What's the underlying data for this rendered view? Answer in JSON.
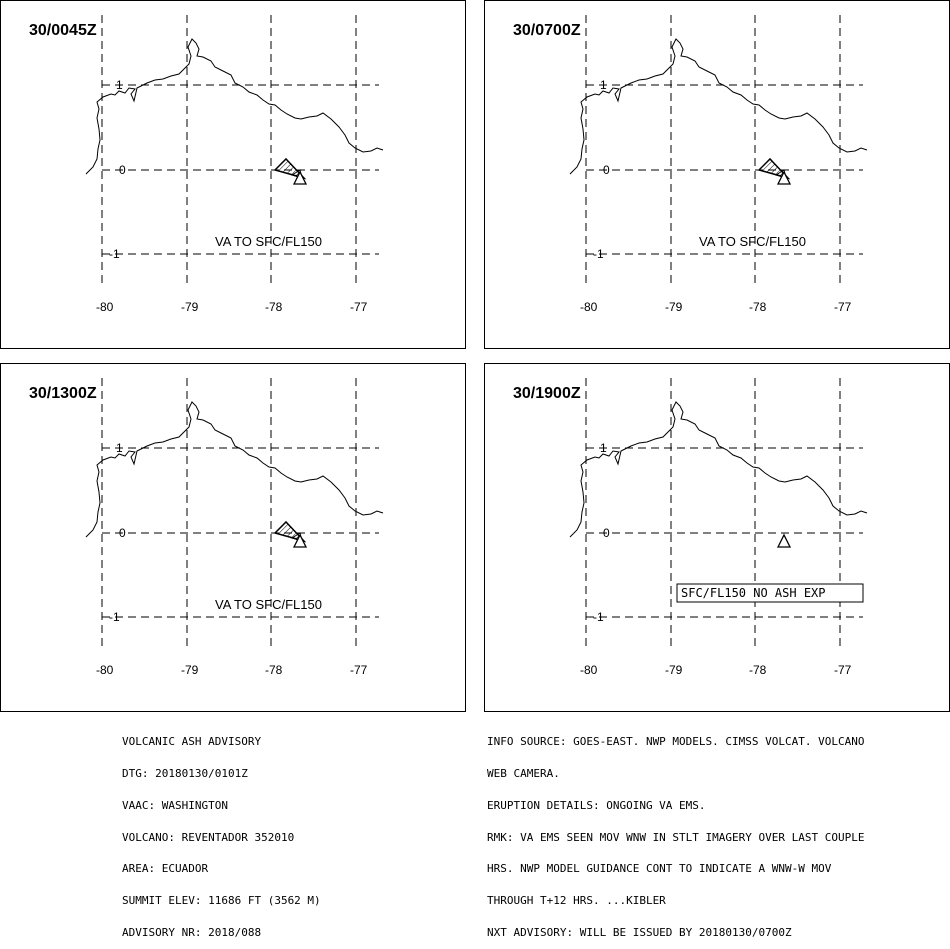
{
  "panels": [
    {
      "time": "30/0045Z",
      "label": "VA TO SFC/FL150",
      "plume": "wedge",
      "box_label": false
    },
    {
      "time": "30/0700Z",
      "label": "VA TO SFC/FL150",
      "plume": "wedge",
      "box_label": false
    },
    {
      "time": "30/1300Z",
      "label": "VA TO SFC/FL150",
      "plume": "wedge",
      "box_label": false
    },
    {
      "time": "30/1900Z",
      "label": "SFC/FL150 NO ASH EXP",
      "plume": "none",
      "box_label": true
    }
  ],
  "map": {
    "lon_ticks": [
      "-80",
      "-79",
      "-78",
      "-77"
    ],
    "lat_ticks": [
      "1",
      "0",
      "-1"
    ],
    "volcano_marker": "triangle"
  },
  "advisory_left": [
    "VOLCANIC ASH ADVISORY",
    "DTG: 20180130/0101Z",
    "VAAC: WASHINGTON",
    "VOLCANO: REVENTADOR 352010",
    "AREA: ECUADOR",
    "SUMMIT ELEV: 11686 FT (3562 M)",
    "ADVISORY NR: 2018/088"
  ],
  "advisory_right": [
    "INFO SOURCE: GOES-EAST. NWP MODELS. CIMSS VOLCAT. VOLCANO",
    "WEB CAMERA.",
    "ERUPTION DETAILS: ONGOING VA EMS.",
    "RMK: VA EMS SEEN MOV WNW IN STLT IMAGERY OVER LAST COUPLE",
    "HRS. NWP MODEL GUIDANCE CONT TO INDICATE A WNW-W MOV",
    "THROUGH T+12 HRS. ...KIBLER",
    "NXT ADVISORY: WILL BE ISSUED BY 20180130/0700Z"
  ]
}
